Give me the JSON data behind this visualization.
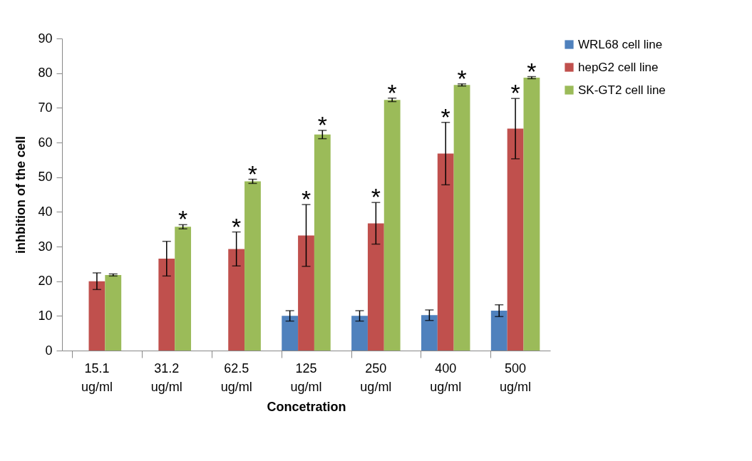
{
  "chart_data": {
    "type": "bar",
    "xlabel": "Concetration",
    "ylabel": "inhbition of the cell",
    "categories": [
      "15.1 ug/ml",
      "31.2 ug/ml",
      "62.5 ug/ml",
      "125 ug/ml",
      "250 ug/ml",
      "400 ug/ml",
      "500 ug/ml"
    ],
    "series": [
      {
        "name": "WRL68 cell line",
        "color": "#4f81bd",
        "values": [
          0,
          0,
          0,
          10,
          10,
          10.2,
          11.5
        ],
        "errors": [
          null,
          null,
          null,
          1.5,
          1.5,
          1.5,
          1.7
        ]
      },
      {
        "name": " hepG2 cell line",
        "color": "#c0504d",
        "values": [
          20,
          26.5,
          29.3,
          33.2,
          36.7,
          56.8,
          64
        ],
        "errors": [
          2.4,
          5,
          4.9,
          8.9,
          6,
          9,
          8.7
        ],
        "value_labels": [
          null,
          null,
          "*",
          "*",
          "*",
          "*",
          "*"
        ]
      },
      {
        "name": "SK-GT2 cell line",
        "color": "#9bbb59",
        "values": [
          21.8,
          35.7,
          48.8,
          62.3,
          72.3,
          76.6,
          78.7
        ],
        "errors": [
          0.3,
          0.6,
          0.6,
          1.2,
          0.5,
          0.3,
          0.3
        ],
        "value_labels": [
          null,
          "*",
          "*",
          "*",
          "*",
          "*",
          "*"
        ]
      }
    ],
    "ylim": [
      0,
      90
    ],
    "yticks": [
      0,
      10,
      20,
      30,
      40,
      50,
      60,
      70,
      80,
      90
    ],
    "grid": false,
    "legend": "right"
  }
}
